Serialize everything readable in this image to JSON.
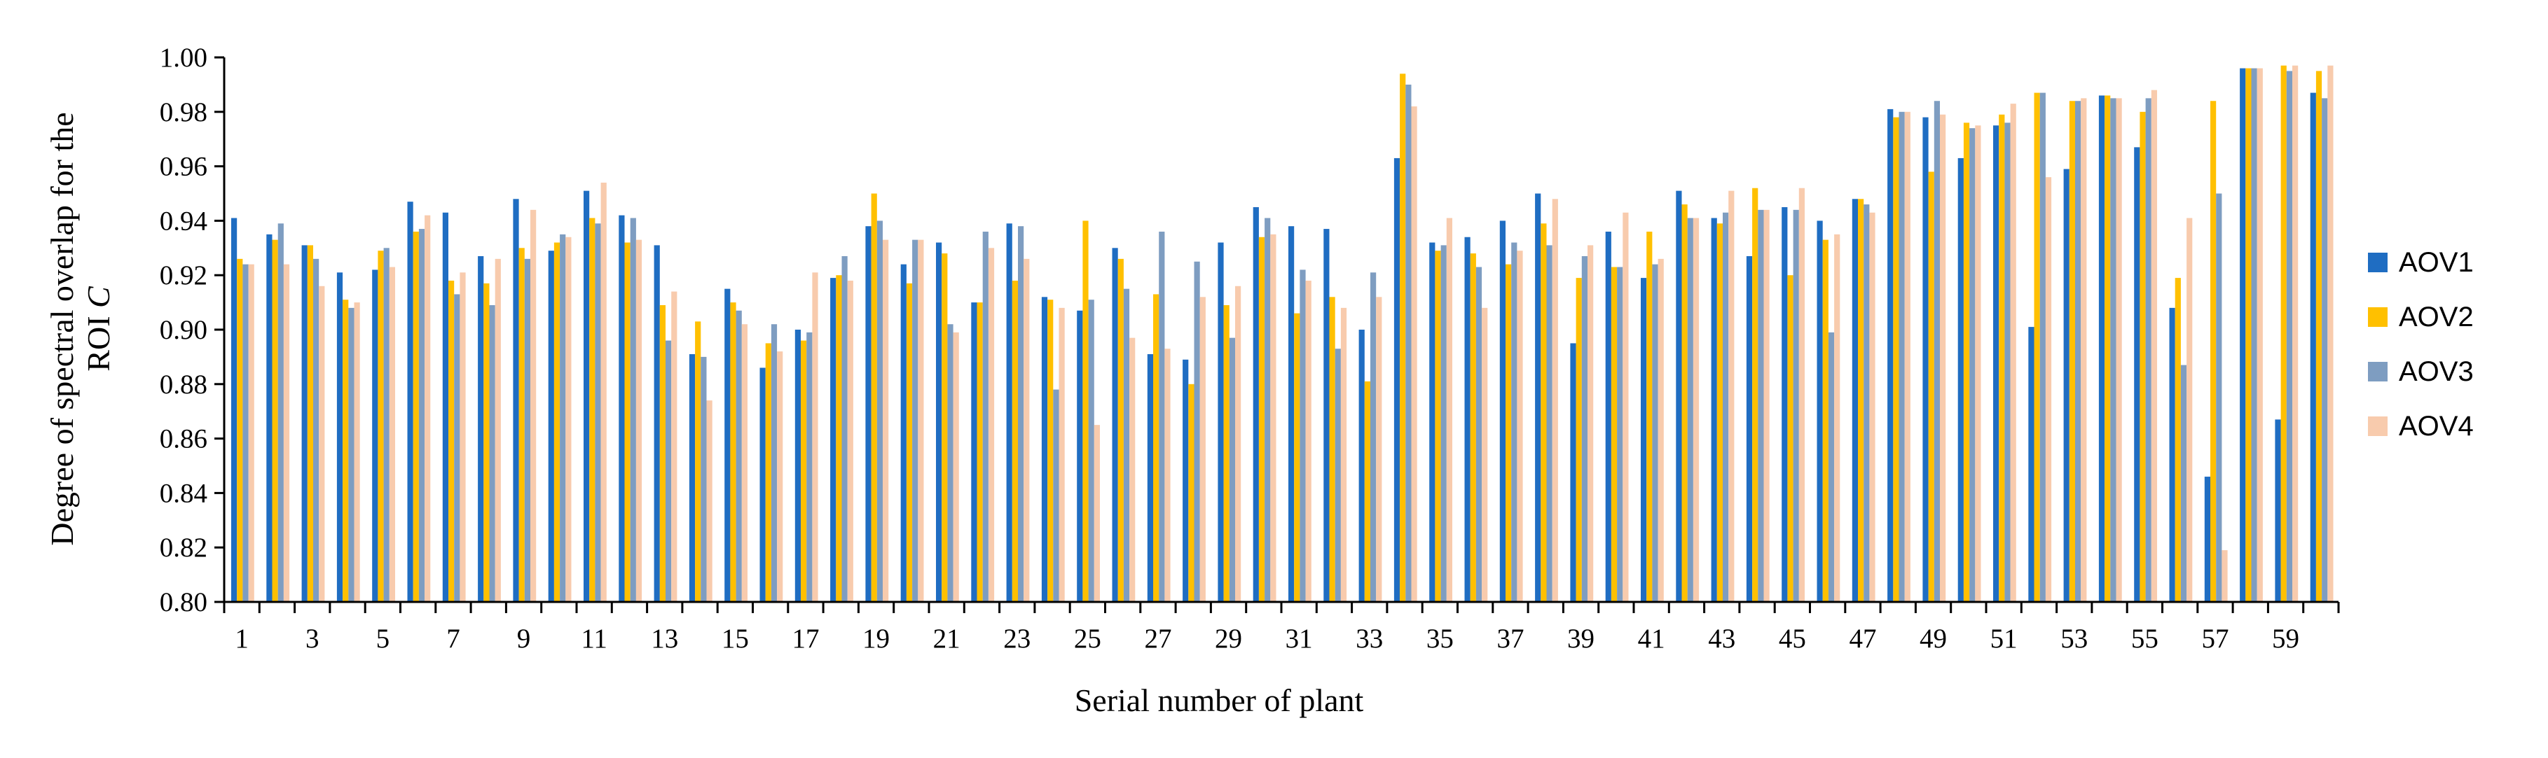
{
  "chart_data": {
    "type": "bar",
    "title": "",
    "xlabel": "Serial number of plant",
    "ylabel_main": "Degree of spectral overlap for the",
    "ylabel_second_line": "ROI ",
    "ylabel_symbol": "C",
    "ylim": [
      0.8,
      1.0
    ],
    "yticks": [
      "0.80",
      "0.82",
      "0.84",
      "0.86",
      "0.88",
      "0.90",
      "0.92",
      "0.94",
      "0.96",
      "0.98",
      "1.00"
    ],
    "xtick_labels": [
      "1",
      "3",
      "5",
      "7",
      "9",
      "11",
      "13",
      "15",
      "17",
      "19",
      "21",
      "23",
      "25",
      "27",
      "29",
      "31",
      "33",
      "35",
      "37",
      "39",
      "41",
      "43",
      "45",
      "47",
      "49",
      "51",
      "53",
      "55",
      "57",
      "59"
    ],
    "legend_position": "right",
    "categories": [
      1,
      2,
      3,
      4,
      5,
      6,
      7,
      8,
      9,
      10,
      11,
      12,
      13,
      14,
      15,
      16,
      17,
      18,
      19,
      20,
      21,
      22,
      23,
      24,
      25,
      26,
      27,
      28,
      29,
      30,
      31,
      32,
      33,
      34,
      35,
      36,
      37,
      38,
      39,
      40,
      41,
      42,
      43,
      44,
      45,
      46,
      47,
      48,
      49,
      50,
      51,
      52,
      53,
      54,
      55,
      56,
      57,
      58,
      59,
      60
    ],
    "series": [
      {
        "name": "AOV1",
        "color": "#1F6DC2",
        "values": [
          0.941,
          0.935,
          0.931,
          0.921,
          0.922,
          0.947,
          0.943,
          0.927,
          0.948,
          0.929,
          0.951,
          0.942,
          0.931,
          0.891,
          0.915,
          0.886,
          0.9,
          0.919,
          0.938,
          0.924,
          0.932,
          0.91,
          0.939,
          0.912,
          0.907,
          0.93,
          0.891,
          0.889,
          0.932,
          0.945,
          0.938,
          0.937,
          0.9,
          0.963,
          0.932,
          0.934,
          0.94,
          0.95,
          0.895,
          0.936,
          0.919,
          0.951,
          0.941,
          0.927,
          0.945,
          0.94,
          0.948,
          0.981,
          0.978,
          0.963,
          0.975,
          0.901,
          0.959,
          0.986,
          0.967,
          0.908,
          0.846,
          0.996,
          0.867,
          0.987
        ]
      },
      {
        "name": "AOV2",
        "color": "#FFC000",
        "values": [
          0.926,
          0.933,
          0.931,
          0.911,
          0.929,
          0.936,
          0.918,
          0.917,
          0.93,
          0.932,
          0.941,
          0.932,
          0.909,
          0.903,
          0.91,
          0.895,
          0.896,
          0.92,
          0.95,
          0.917,
          0.928,
          0.91,
          0.918,
          0.911,
          0.94,
          0.926,
          0.913,
          0.88,
          0.909,
          0.934,
          0.906,
          0.912,
          0.881,
          0.994,
          0.929,
          0.928,
          0.924,
          0.939,
          0.919,
          0.923,
          0.936,
          0.946,
          0.939,
          0.952,
          0.92,
          0.933,
          0.948,
          0.978,
          0.958,
          0.976,
          0.979,
          0.987,
          0.984,
          0.986,
          0.98,
          0.919,
          0.984,
          0.996,
          0.997,
          0.995
        ]
      },
      {
        "name": "AOV3",
        "color": "#7E9DC1",
        "values": [
          0.924,
          0.939,
          0.926,
          0.908,
          0.93,
          0.937,
          0.913,
          0.909,
          0.926,
          0.935,
          0.939,
          0.941,
          0.896,
          0.89,
          0.907,
          0.902,
          0.899,
          0.927,
          0.94,
          0.933,
          0.902,
          0.936,
          0.938,
          0.878,
          0.911,
          0.915,
          0.936,
          0.925,
          0.897,
          0.941,
          0.922,
          0.893,
          0.921,
          0.99,
          0.931,
          0.923,
          0.932,
          0.931,
          0.927,
          0.923,
          0.924,
          0.941,
          0.943,
          0.944,
          0.944,
          0.899,
          0.946,
          0.98,
          0.984,
          0.974,
          0.976,
          0.987,
          0.984,
          0.985,
          0.985,
          0.887,
          0.95,
          0.996,
          0.995,
          0.985
        ]
      },
      {
        "name": "AOV4",
        "color": "#F8CBAD",
        "values": [
          0.924,
          0.924,
          0.916,
          0.91,
          0.923,
          0.942,
          0.921,
          0.926,
          0.944,
          0.934,
          0.954,
          0.933,
          0.914,
          0.874,
          0.902,
          0.892,
          0.921,
          0.918,
          0.933,
          0.933,
          0.899,
          0.93,
          0.926,
          0.908,
          0.865,
          0.897,
          0.893,
          0.912,
          0.916,
          0.935,
          0.918,
          0.908,
          0.912,
          0.982,
          0.941,
          0.908,
          0.929,
          0.948,
          0.931,
          0.943,
          0.926,
          0.941,
          0.951,
          0.944,
          0.952,
          0.935,
          0.943,
          0.98,
          0.979,
          0.975,
          0.983,
          0.956,
          0.985,
          0.985,
          0.988,
          0.941,
          0.819,
          0.996,
          0.997,
          0.997
        ]
      }
    ]
  }
}
